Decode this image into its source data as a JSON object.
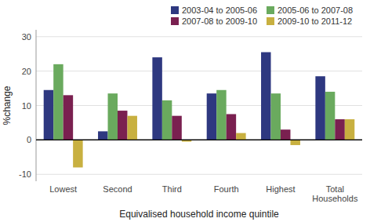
{
  "chart_data": {
    "type": "bar",
    "categories": [
      "Lowest",
      "Second",
      "Third",
      "Fourth",
      "Highest",
      "Total\nHouseholds"
    ],
    "series": [
      {
        "name": "2003-04 to 2005-06",
        "color": "#2e3880",
        "values": [
          14.5,
          2.5,
          24.0,
          13.5,
          25.5,
          18.5
        ]
      },
      {
        "name": "2005-06 to 2007-08",
        "color": "#6aaa5e",
        "values": [
          22.0,
          13.5,
          11.5,
          14.5,
          13.5,
          14.0
        ]
      },
      {
        "name": "2007-08 to 2009-10",
        "color": "#7a2050",
        "values": [
          13.0,
          8.5,
          7.0,
          7.5,
          3.0,
          6.0
        ]
      },
      {
        "name": "2009-10 to 2011-12",
        "color": "#c8b040",
        "values": [
          -8.0,
          7.0,
          -0.5,
          2.0,
          -1.5,
          6.0
        ]
      }
    ],
    "ylabel": "%change",
    "xlabel": "Equivalised household income quintile",
    "ylim": [
      -12,
      32
    ],
    "yticks": [
      -10,
      0,
      10,
      20,
      30
    ],
    "grid": true,
    "legend": "upper right"
  }
}
